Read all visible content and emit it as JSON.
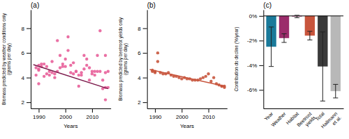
{
  "chart_data": [
    {
      "type": "scatter",
      "annotations": [
        "(a)"
      ],
      "xlabel": "Years",
      "ylabel": "Biomass predicted by weather conditions only\n(grams per day)",
      "series": [
        {
          "type": "scatter",
          "color": "#e8609a",
          "x": [
            1989,
            1990,
            1990,
            1991,
            1992,
            1993,
            1994,
            1995,
            1996,
            1997,
            1998,
            1999,
            2000,
            2001,
            2002,
            2003,
            2004,
            2005,
            2006,
            2007,
            2008,
            2009,
            2010,
            2011,
            2012,
            2013,
            2014,
            2015,
            2015,
            2016
          ],
          "values": [
            4.8,
            4.6,
            5.0,
            5.1,
            5.1,
            4.9,
            4.5,
            5.3,
            4.3,
            7.0,
            4.8,
            5.1,
            5.5,
            7.3,
            5.0,
            5.2,
            4.5,
            3.3,
            4.2,
            5.8,
            5.5,
            4.8,
            4.5,
            4.5,
            5.8,
            7.8,
            3.8,
            4.4,
            5.8,
            4.5
          ]
        },
        {
          "type": "scatter",
          "color": "#e8609a",
          "x": [
            1989,
            1990,
            1990,
            1991,
            1992,
            1993,
            1994,
            1995,
            1996,
            1997,
            1998,
            1999,
            2000,
            2001,
            2002,
            2003,
            2004,
            2005,
            2006,
            2007,
            2008,
            2009,
            2010,
            2011,
            2012,
            2013,
            2014,
            2015,
            2015,
            2016
          ],
          "values": [
            4.2,
            3.5,
            4.7,
            4.9,
            4.1,
            4.3,
            4.2,
            4.4,
            4.0,
            4.5,
            5.8,
            4.9,
            4.9,
            6.2,
            4.4,
            4.3,
            4.5,
            4.2,
            4.4,
            4.7,
            5.0,
            3.8,
            4.3,
            4.2,
            4.5,
            4.5,
            3.1,
            2.2,
            3.2,
            3.2
          ]
        },
        {
          "type": "line",
          "color": "#7b1a4b",
          "x": [
            1988,
            2016
          ],
          "values": [
            5.05,
            3.1
          ]
        }
      ],
      "xlim": [
        1987,
        2017
      ],
      "xticks": [
        1990,
        2000,
        2010
      ],
      "ylim": [
        1.5,
        9.5
      ],
      "yticks": [
        2,
        4,
        6,
        8
      ]
    },
    {
      "type": "scatter",
      "annotations": [
        "(b)"
      ],
      "xlabel": "Years",
      "ylabel": "Biomass predicted by beetroot yields only\n(grams per day)",
      "series": [
        {
          "type": "scatter",
          "color": "#c8553d",
          "x": [
            1989,
            1989,
            1990,
            1990,
            1991,
            1991,
            1992,
            1993,
            1994,
            1995,
            1996,
            1997,
            1998,
            1999,
            2000,
            2001,
            2002,
            2003,
            2004,
            2005,
            2006,
            2007,
            2008,
            2009,
            2010,
            2011,
            2012,
            2013,
            2014,
            2015,
            2015,
            2016,
            2016
          ],
          "values": [
            4.5,
            4.6,
            4.5,
            4.4,
            6.0,
            5.3,
            4.4,
            4.3,
            4.3,
            4.4,
            4.2,
            4.1,
            4.1,
            4.0,
            3.9,
            4.0,
            3.9,
            3.9,
            3.8,
            3.8,
            3.8,
            3.9,
            4.0,
            4.1,
            4.3,
            3.7,
            4.0,
            3.5,
            3.4,
            3.3,
            3.3,
            3.3,
            3.2
          ]
        },
        {
          "type": "line",
          "color": "#c8553d",
          "x": [
            1988,
            2016
          ],
          "values": [
            4.65,
            3.3
          ]
        }
      ],
      "xlim": [
        1987,
        2017
      ],
      "xticks": [
        1990,
        2000,
        2010
      ],
      "ylim": [
        1.5,
        9.5
      ],
      "yticks": [
        2,
        4,
        6,
        8
      ]
    },
    {
      "type": "bar",
      "annotations": [
        "(c)"
      ],
      "ylabel": "Contribution do decline (%/year)",
      "categories": [
        "Year",
        "Weather",
        "Habitat",
        "Beetroot\nyields",
        "Total",
        "Hallmann\net al."
      ],
      "values": [
        -2.5,
        -1.8,
        -0.05,
        -1.6,
        -4.1,
        -6.1
      ],
      "errors": [
        1.6,
        0.35,
        0.1,
        0.35,
        2.8,
        0.55
      ],
      "colors": [
        "#1a7a9a",
        "#9b2c6b",
        "#9b2c6b",
        "#c8553d",
        "#3a3a3a",
        "#b8b8b8"
      ],
      "ylim": [
        -7.5,
        0.5
      ],
      "yticks": [
        {
          "value": 0,
          "label": "0%"
        },
        {
          "value": -2,
          "label": "-2%"
        },
        {
          "value": -4,
          "label": "-4%"
        },
        {
          "value": -6,
          "label": "-6%"
        }
      ]
    }
  ]
}
